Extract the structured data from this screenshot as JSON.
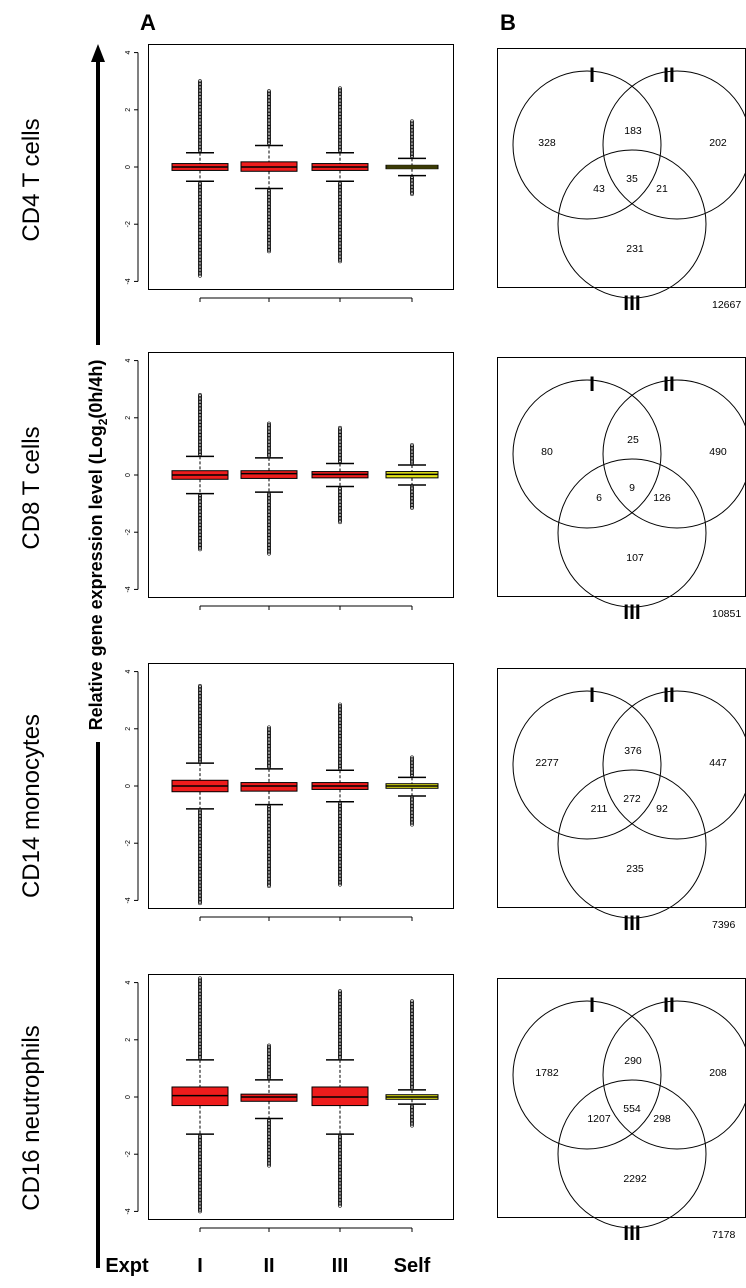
{
  "panel_letters": {
    "a": "A",
    "b": "B"
  },
  "row_labels": [
    "CD4 T cells",
    "CD8 T cells",
    "CD14 monocytes",
    "CD16 neutrophils"
  ],
  "ylabel": {
    "main": "Relative gene expression level (Log",
    "sub": "2",
    "tail": "(0h/4h)"
  },
  "x_header": "Expt",
  "categories": [
    "I",
    "II",
    "III",
    "Self"
  ],
  "colors": {
    "expt": "#ee1c1c",
    "self": "#e6e616",
    "outline": "#000000"
  },
  "chart_data": [
    {
      "type": "box",
      "panel": "CD4 T cells",
      "categories": [
        "I",
        "II",
        "III",
        "Self"
      ],
      "ylim": [
        -4.3,
        4.3
      ],
      "yticks": [
        -4,
        -2,
        0,
        2,
        4
      ],
      "boxes": [
        {
          "q1": -0.12,
          "median": 0.0,
          "q3": 0.12,
          "whisker_low": -0.5,
          "whisker_high": 0.5,
          "out_low": -3.8,
          "out_high": 3.0
        },
        {
          "q1": -0.15,
          "median": 0.0,
          "q3": 0.18,
          "whisker_low": -0.75,
          "whisker_high": 0.75,
          "out_low": -2.95,
          "out_high": 2.65
        },
        {
          "q1": -0.12,
          "median": 0.0,
          "q3": 0.12,
          "whisker_low": -0.5,
          "whisker_high": 0.5,
          "out_low": -3.3,
          "out_high": 2.75
        },
        {
          "q1": -0.06,
          "median": 0.0,
          "q3": 0.06,
          "whisker_low": -0.3,
          "whisker_high": 0.3,
          "out_low": -0.95,
          "out_high": 1.6
        }
      ]
    },
    {
      "type": "box",
      "panel": "CD8 T cells",
      "categories": [
        "I",
        "II",
        "III",
        "Self"
      ],
      "ylim": [
        -4.3,
        4.3
      ],
      "yticks": [
        -4,
        -2,
        0,
        2,
        4
      ],
      "boxes": [
        {
          "q1": -0.15,
          "median": 0.0,
          "q3": 0.15,
          "whisker_low": -0.65,
          "whisker_high": 0.65,
          "out_low": -2.6,
          "out_high": 2.8
        },
        {
          "q1": -0.12,
          "median": 0.05,
          "q3": 0.15,
          "whisker_low": -0.6,
          "whisker_high": 0.6,
          "out_low": -2.75,
          "out_high": 1.8
        },
        {
          "q1": -0.1,
          "median": 0.02,
          "q3": 0.12,
          "whisker_low": -0.4,
          "whisker_high": 0.4,
          "out_low": -1.65,
          "out_high": 1.65
        },
        {
          "q1": -0.1,
          "median": 0.02,
          "q3": 0.12,
          "whisker_low": -0.35,
          "whisker_high": 0.35,
          "out_low": -1.15,
          "out_high": 1.05
        }
      ]
    },
    {
      "type": "box",
      "panel": "CD14 monocytes",
      "categories": [
        "I",
        "II",
        "III",
        "Self"
      ],
      "ylim": [
        -4.3,
        4.3
      ],
      "yticks": [
        -4,
        -2,
        0,
        2,
        4
      ],
      "boxes": [
        {
          "q1": -0.2,
          "median": 0.0,
          "q3": 0.2,
          "whisker_low": -0.8,
          "whisker_high": 0.8,
          "out_low": -4.1,
          "out_high": 3.5
        },
        {
          "q1": -0.18,
          "median": 0.0,
          "q3": 0.12,
          "whisker_low": -0.65,
          "whisker_high": 0.6,
          "out_low": -3.5,
          "out_high": 2.05
        },
        {
          "q1": -0.12,
          "median": 0.0,
          "q3": 0.12,
          "whisker_low": -0.55,
          "whisker_high": 0.55,
          "out_low": -3.45,
          "out_high": 2.85
        },
        {
          "q1": -0.08,
          "median": 0.0,
          "q3": 0.08,
          "whisker_low": -0.35,
          "whisker_high": 0.3,
          "out_low": -1.35,
          "out_high": 1.0
        }
      ]
    },
    {
      "type": "box",
      "panel": "CD16 neutrophils",
      "categories": [
        "I",
        "II",
        "III",
        "Self"
      ],
      "ylim": [
        -4.3,
        4.3
      ],
      "yticks": [
        -4,
        -2,
        0,
        2,
        4
      ],
      "boxes": [
        {
          "q1": -0.3,
          "median": 0.05,
          "q3": 0.35,
          "whisker_low": -1.3,
          "whisker_high": 1.3,
          "out_low": -4.0,
          "out_high": 4.15
        },
        {
          "q1": -0.15,
          "median": 0.0,
          "q3": 0.1,
          "whisker_low": -0.75,
          "whisker_high": 0.6,
          "out_low": -2.4,
          "out_high": 1.8
        },
        {
          "q1": -0.3,
          "median": 0.0,
          "q3": 0.35,
          "whisker_low": -1.3,
          "whisker_high": 1.3,
          "out_low": -3.8,
          "out_high": 3.7
        },
        {
          "q1": -0.08,
          "median": 0.0,
          "q3": 0.08,
          "whisker_low": -0.25,
          "whisker_high": 0.25,
          "out_low": -1.0,
          "out_high": 3.35
        }
      ]
    }
  ],
  "venn": [
    {
      "panel": "CD4 T cells",
      "sets": [
        "I",
        "II",
        "III"
      ],
      "only_I": "328",
      "only_II": "202",
      "only_III": "231",
      "I_II": "183",
      "I_III": "43",
      "II_III": "21",
      "all": "35",
      "outside": "12667"
    },
    {
      "panel": "CD8 T cells",
      "sets": [
        "I",
        "II",
        "III"
      ],
      "only_I": "80",
      "only_II": "490",
      "only_III": "107",
      "I_II": "25",
      "I_III": "6",
      "II_III": "126",
      "all": "9",
      "outside": "10851"
    },
    {
      "panel": "CD14 monocytes",
      "sets": [
        "I",
        "II",
        "III"
      ],
      "only_I": "2277",
      "only_II": "447",
      "only_III": "235",
      "I_II": "376",
      "I_III": "211",
      "II_III": "92",
      "all": "272",
      "outside": "7396"
    },
    {
      "panel": "CD16 neutrophils",
      "sets": [
        "I",
        "II",
        "III"
      ],
      "only_I": "1782",
      "only_II": "208",
      "only_III": "2292",
      "I_II": "290",
      "I_III": "1207",
      "II_III": "298",
      "all": "554",
      "outside": "7178"
    }
  ]
}
